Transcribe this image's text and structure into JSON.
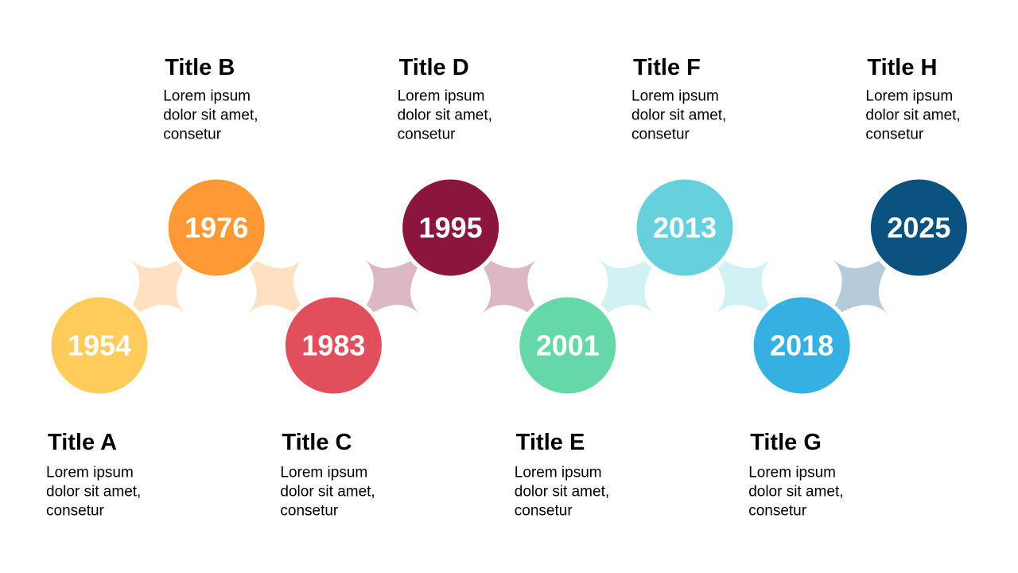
{
  "nodes": [
    {
      "year": "1954",
      "title": "Title A",
      "text": [
        "Lorem ipsum",
        "dolor sit amet,",
        "consetur"
      ],
      "color": "#ffcc5c"
    },
    {
      "year": "1976",
      "title": "Title B",
      "text": [
        "Lorem ipsum",
        "dolor sit amet,",
        "consetur"
      ],
      "color": "#ff9933"
    },
    {
      "year": "1983",
      "title": "Title C",
      "text": [
        "Lorem ipsum",
        "dolor sit amet,",
        "consetur"
      ],
      "color": "#e24f5c"
    },
    {
      "year": "1995",
      "title": "Title D",
      "text": [
        "Lorem ipsum",
        "dolor sit amet,",
        "consetur"
      ],
      "color": "#8c1540"
    },
    {
      "year": "2001",
      "title": "Title E",
      "text": [
        "Lorem ipsum",
        "dolor sit amet,",
        "consetur"
      ],
      "color": "#66d8a8"
    },
    {
      "year": "2013",
      "title": "Title F",
      "text": [
        "Lorem ipsum",
        "dolor sit amet,",
        "consetur"
      ],
      "color": "#66d0dc"
    },
    {
      "year": "2018",
      "title": "Title G",
      "text": [
        "Lorem ipsum",
        "dolor sit amet,",
        "consetur"
      ],
      "color": "#36b0e2"
    },
    {
      "year": "2025",
      "title": "Title H",
      "text": [
        "Lorem ipsum",
        "dolor sit amet,",
        "consetur"
      ],
      "color": "#0b5280"
    }
  ]
}
